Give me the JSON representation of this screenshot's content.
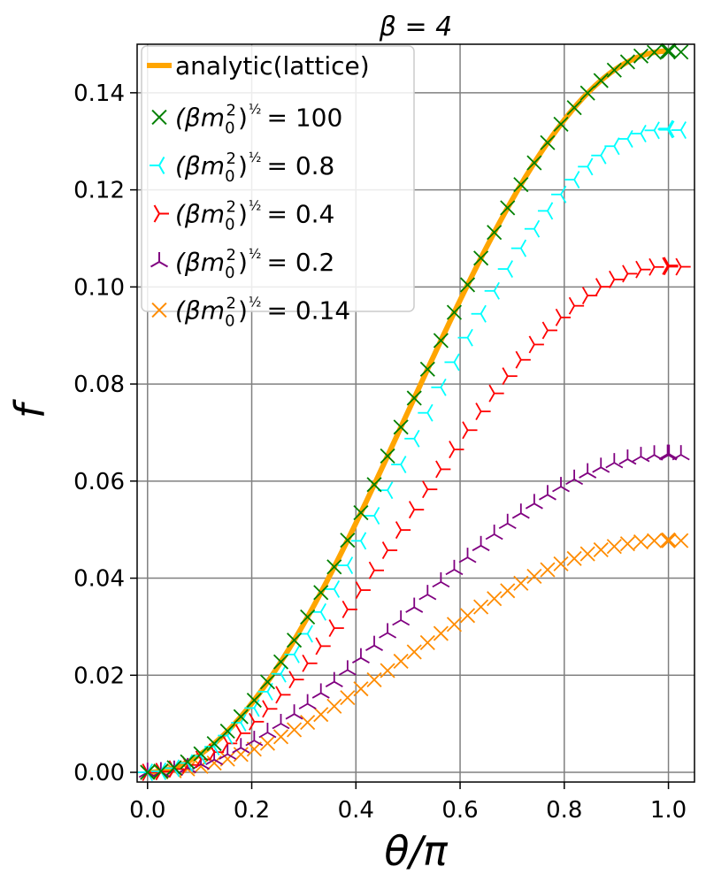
{
  "chart_data": {
    "type": "line",
    "title": "β = 4",
    "xlabel": "θ/π",
    "ylabel": "f",
    "xlim": [
      -0.02,
      1.05
    ],
    "ylim": [
      -0.002,
      0.15
    ],
    "xticks": [
      "0.0",
      "0.2",
      "0.4",
      "0.6",
      "0.8",
      "1.0"
    ],
    "yticks": [
      "0.00",
      "0.02",
      "0.04",
      "0.06",
      "0.08",
      "0.10",
      "0.12",
      "0.14"
    ],
    "grid": true,
    "legend_position": "top-left",
    "colors": {
      "analytic": "#ffa500",
      "m100": "#008000",
      "m08": "#00ffff",
      "m04": "#ff0000",
      "m02": "#800080",
      "m014": "#ff8c00",
      "grid": "#808080"
    },
    "series": [
      {
        "name": "analytic(lattice)",
        "legend_prefix": "",
        "legend_value": "",
        "marker": "line",
        "amplitude": 0.1486,
        "x_range": [
          0.0,
          1.0
        ]
      },
      {
        "name": "(βm0²)^½ = 100",
        "legend_prefix": "(βm",
        "legend_value": "= 100",
        "marker": "x",
        "amplitude": 0.1486,
        "x_range": [
          0.0,
          1.03
        ]
      },
      {
        "name": "(βm0²)^½ = 0.8",
        "legend_prefix": "(βm",
        "legend_value": "= 0.8",
        "marker": "tri_right",
        "amplitude": 0.1325,
        "x_range": [
          0.0,
          1.03
        ]
      },
      {
        "name": "(βm0²)^½ = 0.4",
        "legend_prefix": "(βm",
        "legend_value": "= 0.4",
        "marker": "tri_left",
        "amplitude": 0.1043,
        "x_range": [
          0.0,
          1.03
        ]
      },
      {
        "name": "(βm0²)^½ = 0.2",
        "legend_prefix": "(βm",
        "legend_value": "= 0.2",
        "marker": "tri_up",
        "amplitude": 0.0655,
        "x_range": [
          0.0,
          1.03
        ]
      },
      {
        "name": "(βm0²)^½ = 0.14",
        "legend_prefix": "(βm",
        "legend_value": "= 0.14",
        "marker": "x",
        "amplitude": 0.0478,
        "x_range": [
          0.0,
          1.03
        ]
      }
    ],
    "x_step": 0.0256,
    "functional_form": "f = A * (1 - cos(pi * x)) / 2, mirrored beyond x = 1"
  }
}
